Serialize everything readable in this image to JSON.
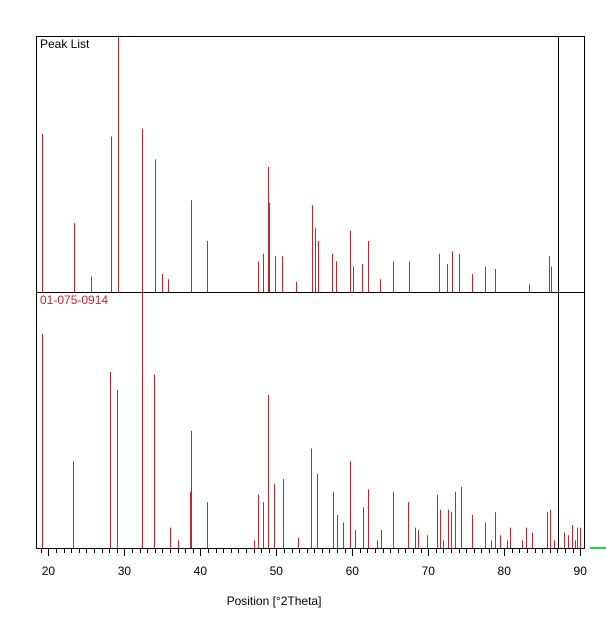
{
  "chart_data": [
    {
      "type": "bar",
      "title": "Peak List",
      "xlabel": "Position [°2Theta]",
      "xlim": [
        18.5,
        90.5
      ],
      "ylim": [
        0,
        100
      ],
      "cursor_x": 87.1,
      "color": "#c0282c",
      "peaks": [
        {
          "x": 19.2,
          "y": 62
        },
        {
          "x": 23.4,
          "y": 27
        },
        {
          "x": 25.6,
          "y": 6
        },
        {
          "x": 28.2,
          "y": 61
        },
        {
          "x": 29.2,
          "y": 100
        },
        {
          "x": 32.3,
          "y": 64
        },
        {
          "x": 34.0,
          "y": 52
        },
        {
          "x": 34.9,
          "y": 7
        },
        {
          "x": 35.8,
          "y": 5
        },
        {
          "x": 38.8,
          "y": 36
        },
        {
          "x": 40.9,
          "y": 20
        },
        {
          "x": 47.6,
          "y": 12
        },
        {
          "x": 48.2,
          "y": 15
        },
        {
          "x": 48.9,
          "y": 49
        },
        {
          "x": 49.1,
          "y": 35
        },
        {
          "x": 49.8,
          "y": 14
        },
        {
          "x": 50.8,
          "y": 14
        },
        {
          "x": 52.6,
          "y": 4
        },
        {
          "x": 54.7,
          "y": 34
        },
        {
          "x": 55.1,
          "y": 25
        },
        {
          "x": 55.5,
          "y": 20
        },
        {
          "x": 57.3,
          "y": 15
        },
        {
          "x": 57.9,
          "y": 12
        },
        {
          "x": 59.7,
          "y": 24
        },
        {
          "x": 60.1,
          "y": 10
        },
        {
          "x": 61.3,
          "y": 11
        },
        {
          "x": 62.1,
          "y": 20
        },
        {
          "x": 63.6,
          "y": 5
        },
        {
          "x": 65.4,
          "y": 12
        },
        {
          "x": 67.5,
          "y": 12
        },
        {
          "x": 71.4,
          "y": 15
        },
        {
          "x": 72.5,
          "y": 11
        },
        {
          "x": 73.1,
          "y": 16
        },
        {
          "x": 74.1,
          "y": 15
        },
        {
          "x": 75.7,
          "y": 7
        },
        {
          "x": 77.5,
          "y": 10
        },
        {
          "x": 78.8,
          "y": 9
        },
        {
          "x": 83.2,
          "y": 3
        },
        {
          "x": 85.9,
          "y": 14
        },
        {
          "x": 86.2,
          "y": 10
        }
      ]
    },
    {
      "type": "bar",
      "title": "01-075-0914",
      "xlabel": "Position [°2Theta]",
      "xlim": [
        18.5,
        90.5
      ],
      "ylim": [
        0,
        100
      ],
      "color": "#c0282c",
      "peaks": [
        {
          "x": 19.1,
          "y": 84
        },
        {
          "x": 23.3,
          "y": 34
        },
        {
          "x": 28.1,
          "y": 69
        },
        {
          "x": 29.0,
          "y": 62
        },
        {
          "x": 32.3,
          "y": 100
        },
        {
          "x": 33.9,
          "y": 68
        },
        {
          "x": 36.0,
          "y": 8
        },
        {
          "x": 37.0,
          "y": 3
        },
        {
          "x": 38.6,
          "y": 22
        },
        {
          "x": 38.8,
          "y": 46
        },
        {
          "x": 40.9,
          "y": 18
        },
        {
          "x": 47.1,
          "y": 3
        },
        {
          "x": 47.6,
          "y": 21
        },
        {
          "x": 48.2,
          "y": 18
        },
        {
          "x": 48.9,
          "y": 60
        },
        {
          "x": 49.7,
          "y": 25
        },
        {
          "x": 50.9,
          "y": 27
        },
        {
          "x": 52.8,
          "y": 4
        },
        {
          "x": 54.5,
          "y": 39
        },
        {
          "x": 55.3,
          "y": 29
        },
        {
          "x": 57.4,
          "y": 22
        },
        {
          "x": 58.0,
          "y": 13
        },
        {
          "x": 58.8,
          "y": 10
        },
        {
          "x": 59.7,
          "y": 34
        },
        {
          "x": 60.3,
          "y": 7
        },
        {
          "x": 61.4,
          "y": 16
        },
        {
          "x": 62.1,
          "y": 23
        },
        {
          "x": 63.2,
          "y": 3
        },
        {
          "x": 63.8,
          "y": 7
        },
        {
          "x": 65.4,
          "y": 22
        },
        {
          "x": 67.3,
          "y": 18
        },
        {
          "x": 68.2,
          "y": 8
        },
        {
          "x": 68.7,
          "y": 7
        },
        {
          "x": 69.8,
          "y": 5
        },
        {
          "x": 71.1,
          "y": 21
        },
        {
          "x": 71.5,
          "y": 15
        },
        {
          "x": 71.9,
          "y": 3
        },
        {
          "x": 72.6,
          "y": 15
        },
        {
          "x": 73.0,
          "y": 14
        },
        {
          "x": 73.5,
          "y": 22
        },
        {
          "x": 74.3,
          "y": 24
        },
        {
          "x": 75.7,
          "y": 13
        },
        {
          "x": 77.5,
          "y": 10
        },
        {
          "x": 78.2,
          "y": 3
        },
        {
          "x": 78.8,
          "y": 14
        },
        {
          "x": 79.5,
          "y": 5
        },
        {
          "x": 80.3,
          "y": 3
        },
        {
          "x": 80.8,
          "y": 8
        },
        {
          "x": 82.3,
          "y": 3
        },
        {
          "x": 82.8,
          "y": 8
        },
        {
          "x": 83.6,
          "y": 6
        },
        {
          "x": 85.6,
          "y": 14
        },
        {
          "x": 86.0,
          "y": 15
        },
        {
          "x": 86.6,
          "y": 3
        },
        {
          "x": 87.9,
          "y": 6
        },
        {
          "x": 88.4,
          "y": 5
        },
        {
          "x": 88.9,
          "y": 9
        },
        {
          "x": 89.3,
          "y": 3
        },
        {
          "x": 89.6,
          "y": 8
        },
        {
          "x": 90.0,
          "y": 8
        }
      ],
      "xticks_major": [
        20,
        30,
        40,
        50,
        60,
        70,
        80,
        90
      ],
      "xtick_labels": [
        "20",
        "30",
        "40",
        "50",
        "60",
        "70",
        "80",
        "90"
      ],
      "xticks_minor_step": 1
    }
  ]
}
